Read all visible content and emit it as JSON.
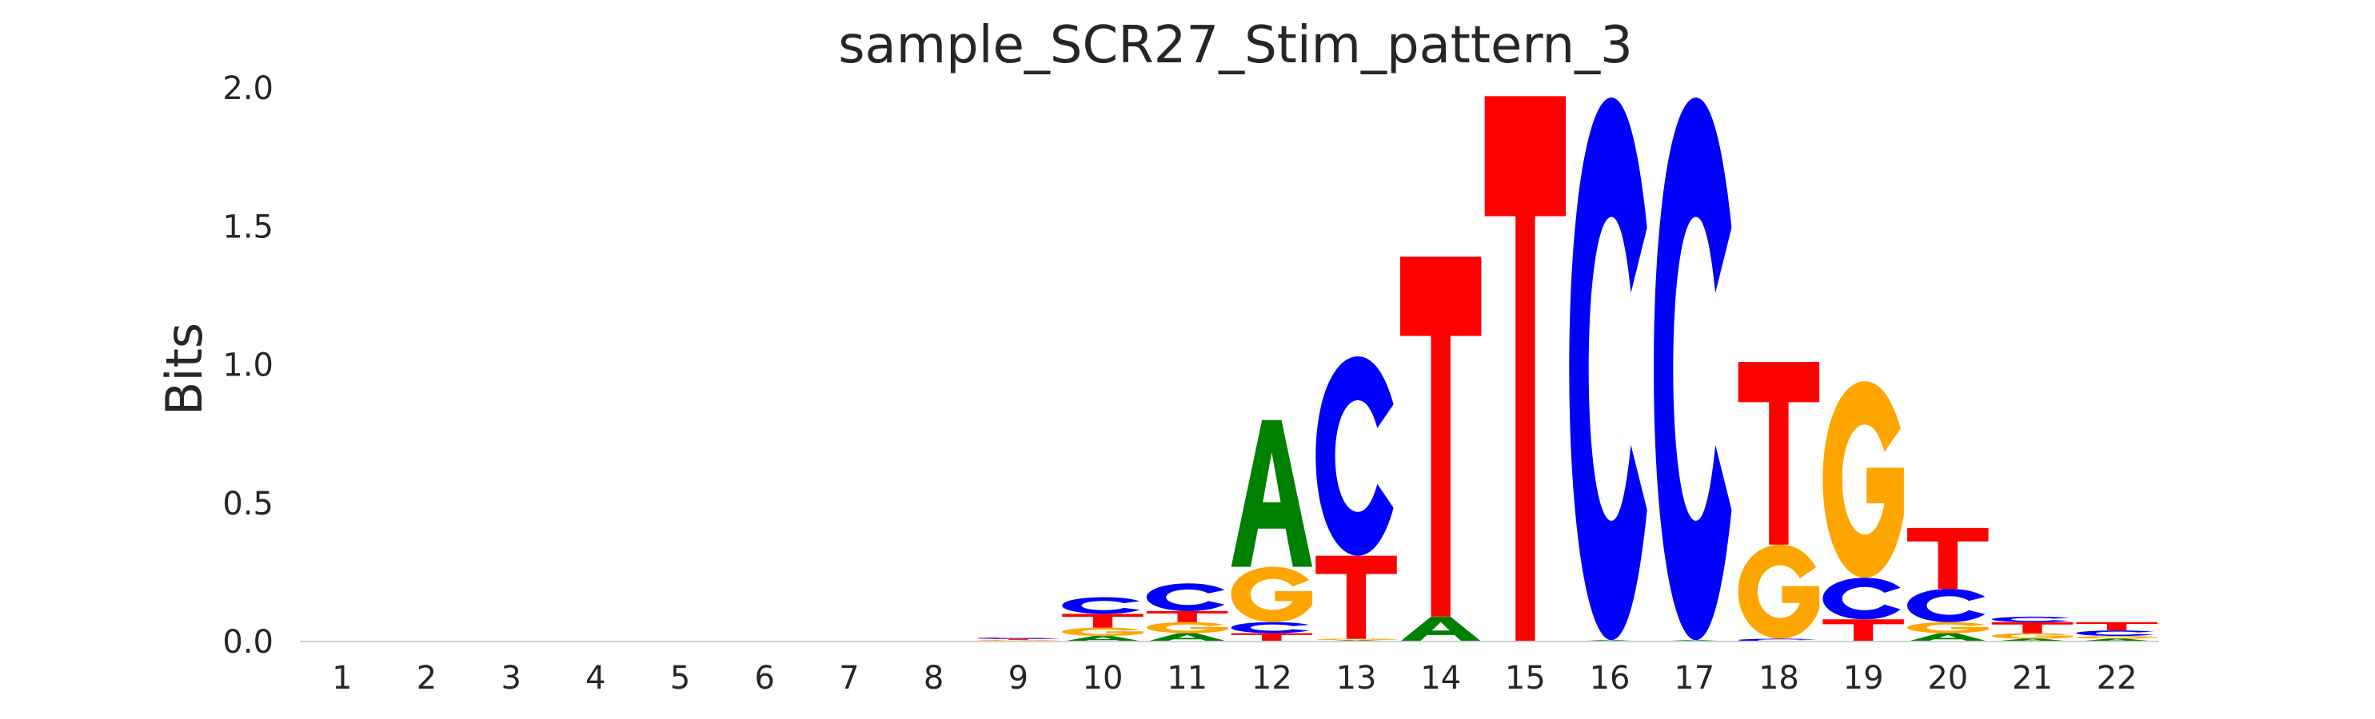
{
  "chart_data": {
    "type": "sequence-logo",
    "title": "sample_SCR27_Stim_pattern_3",
    "xlabel": "",
    "ylabel": "Bits",
    "ylim": [
      0,
      2.0
    ],
    "yticks": [
      "0.0",
      "0.5",
      "1.0",
      "1.5",
      "2.0"
    ],
    "ytick_values": [
      0,
      0.5,
      1.0,
      1.5,
      2.0
    ],
    "grid": false,
    "legend": "none",
    "colors": {
      "A": "#008000",
      "C": "#0000ff",
      "G": "#ffa500",
      "T": "#ff0000"
    },
    "positions": [
      "1",
      "2",
      "3",
      "4",
      "5",
      "6",
      "7",
      "8",
      "9",
      "10",
      "11",
      "12",
      "13",
      "14",
      "15",
      "16",
      "17",
      "18",
      "19",
      "20",
      "21",
      "22"
    ],
    "stacks": [
      [],
      [],
      [],
      [],
      [],
      [],
      [],
      [],
      [
        [
          "A",
          0.003
        ],
        [
          "G",
          0.003
        ],
        [
          "T",
          0.004
        ],
        [
          "C",
          0.004
        ]
      ],
      [
        [
          "A",
          0.02
        ],
        [
          "G",
          0.03
        ],
        [
          "T",
          0.05
        ],
        [
          "C",
          0.06
        ]
      ],
      [
        [
          "A",
          0.03
        ],
        [
          "G",
          0.04
        ],
        [
          "T",
          0.04
        ],
        [
          "C",
          0.1
        ]
      ],
      [
        [
          "T",
          0.03
        ],
        [
          "C",
          0.04
        ],
        [
          "G",
          0.2
        ],
        [
          "A",
          0.53
        ]
      ],
      [
        [
          "A",
          0.005
        ],
        [
          "G",
          0.005
        ],
        [
          "T",
          0.3
        ],
        [
          "C",
          0.72
        ]
      ],
      [
        [
          "A",
          0.09
        ],
        [
          "T",
          1.3
        ],
        [
          "C",
          0.0
        ],
        [
          "G",
          0.0
        ]
      ],
      [
        [
          "T",
          1.97
        ]
      ],
      [
        [
          "A",
          0.005
        ],
        [
          "C",
          1.96
        ]
      ],
      [
        [
          "A",
          0.005
        ],
        [
          "C",
          1.96
        ]
      ],
      [
        [
          "C",
          0.01
        ],
        [
          "G",
          0.34
        ],
        [
          "T",
          0.66
        ]
      ],
      [
        [
          "T",
          0.08
        ],
        [
          "C",
          0.15
        ],
        [
          "G",
          0.71
        ]
      ],
      [
        [
          "A",
          0.03
        ],
        [
          "G",
          0.04
        ],
        [
          "C",
          0.12
        ],
        [
          "T",
          0.22
        ]
      ],
      [
        [
          "A",
          0.01
        ],
        [
          "G",
          0.02
        ],
        [
          "T",
          0.04
        ],
        [
          "C",
          0.02
        ]
      ],
      [
        [
          "A",
          0.01
        ],
        [
          "G",
          0.01
        ],
        [
          "C",
          0.02
        ],
        [
          "T",
          0.03
        ]
      ]
    ]
  }
}
